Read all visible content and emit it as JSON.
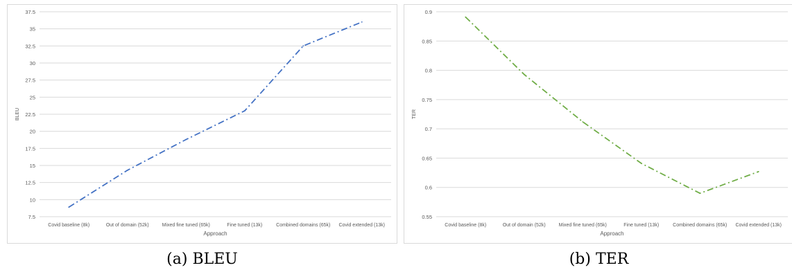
{
  "captions": {
    "a": "(a) BLEU",
    "b": "(b) TER"
  },
  "chart_data": [
    {
      "type": "line",
      "title": "",
      "xlabel": "Approach",
      "ylabel": "BLEU",
      "categories": [
        "Covid baseline (8k)",
        "Out of domain (52k)",
        "Mixed fine tuned (65k)",
        "Fine tuned (13k)",
        "Combined domains (65k)",
        "Covid extended (13k)"
      ],
      "series": [
        {
          "values": [
            8.9,
            14.3,
            18.8,
            23.0,
            32.5,
            36.0
          ],
          "color": "#4472c4"
        }
      ],
      "ylim": [
        7.5,
        37.5
      ],
      "yticks": [
        "7.5",
        "10",
        "12.5",
        "15",
        "17.5",
        "20",
        "22.5",
        "25",
        "27.5",
        "30",
        "32.5",
        "35",
        "37.5"
      ],
      "grid": true,
      "line_style": "dash-dot"
    },
    {
      "type": "line",
      "title": "",
      "xlabel": "Approach",
      "ylabel": "TER",
      "categories": [
        "Covid baseline (8k)",
        "Out of domain (52k)",
        "Mixed fine tuned (65k)",
        "Fine tuned (13k)",
        "Combined domains (65k)",
        "Covid extended (13k)"
      ],
      "series": [
        {
          "values": [
            0.891,
            0.793,
            0.712,
            0.641,
            0.59,
            0.627
          ],
          "color": "#70ad47"
        }
      ],
      "ylim": [
        0.55,
        0.9
      ],
      "yticks": [
        "0.55",
        "0.6",
        "0.65",
        "0.7",
        "0.75",
        "0.8",
        "0.85",
        "0.9"
      ],
      "grid": true,
      "line_style": "dash-dot"
    }
  ]
}
